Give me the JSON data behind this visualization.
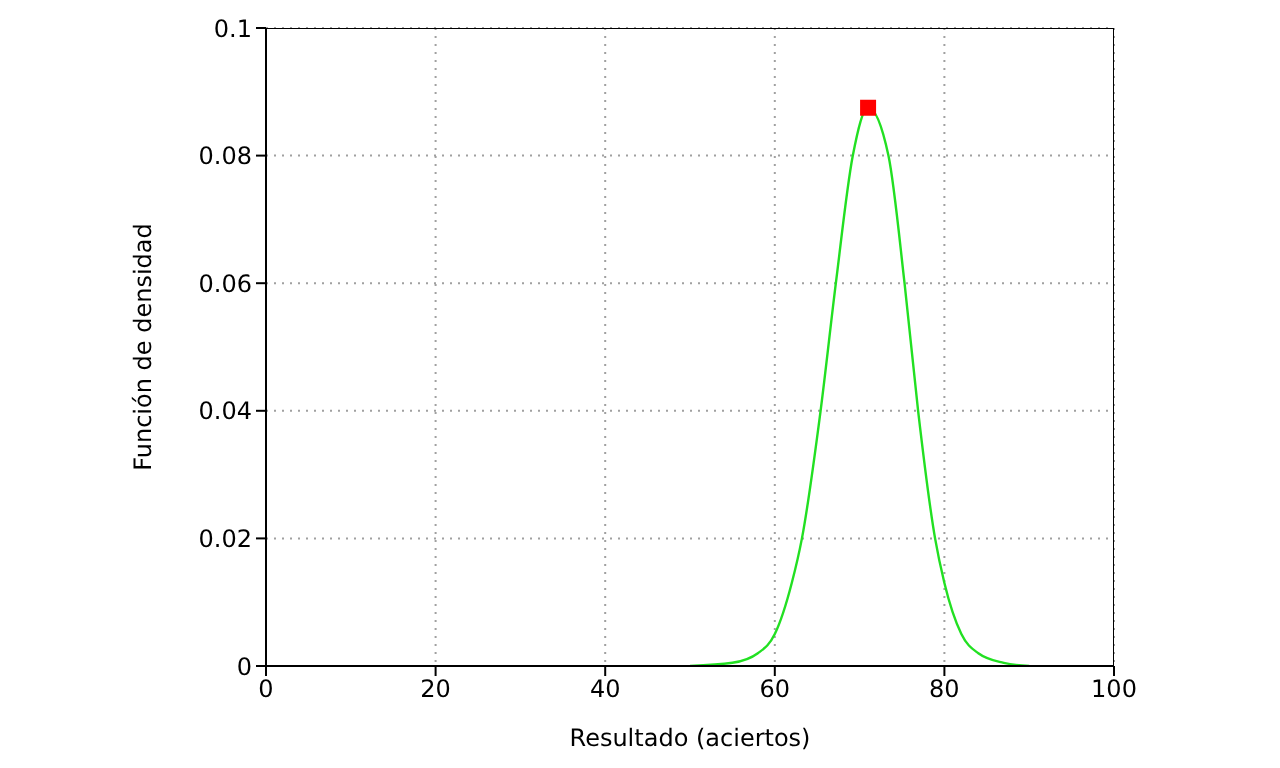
{
  "chart_data": {
    "type": "line",
    "xlabel": "Resultado (aciertos)",
    "ylabel": "Función de densidad",
    "xlim": [
      0,
      100
    ],
    "xticks": [
      0,
      20,
      40,
      60,
      80,
      100
    ],
    "ylim": [
      0,
      0.1
    ],
    "yticks": [
      0,
      0.02,
      0.04,
      0.06,
      0.08,
      0.1
    ],
    "grid": true,
    "series": [
      {
        "color": "#22e022",
        "marker": "none",
        "x": [
          50,
          55,
          58,
          60,
          62,
          63.2,
          65.4,
          67.2,
          69.2,
          71,
          73.4,
          75.3,
          76.9,
          78.9,
          80,
          82,
          84,
          87,
          90
        ],
        "values": [
          0,
          0.0005,
          0.002,
          0.005,
          0.013,
          0.02,
          0.04,
          0.06,
          0.08,
          0.0875,
          0.08,
          0.06,
          0.04,
          0.02,
          0.013,
          0.005,
          0.002,
          0.0005,
          0
        ]
      },
      {
        "type": "scatter",
        "color": "#ff0000",
        "marker": "square",
        "x": [
          71
        ],
        "values": [
          0.0875
        ]
      }
    ]
  }
}
